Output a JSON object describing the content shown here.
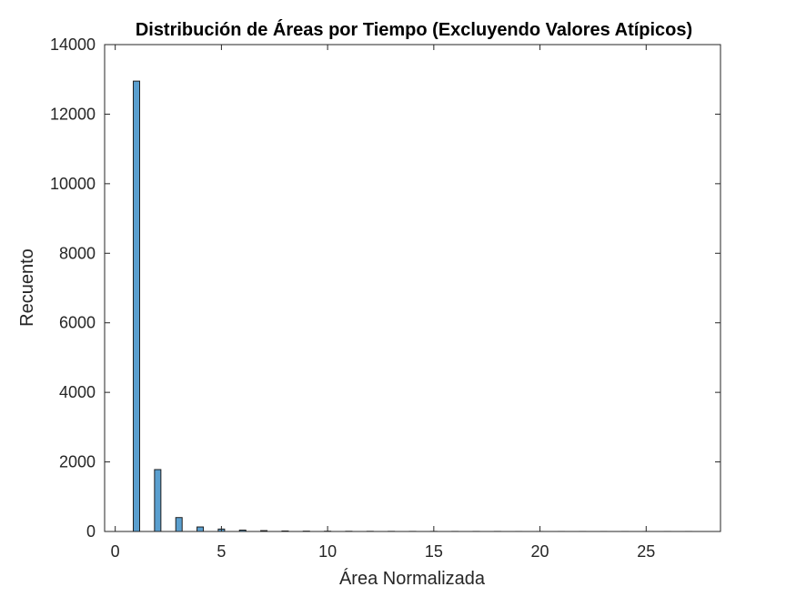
{
  "chart_data": {
    "type": "bar",
    "title": "Distribución de Áreas por Tiempo (Excluyendo Valores Atípicos)",
    "xlabel": "Área Normalizada",
    "ylabel": "Recuento",
    "xlim": [
      -0.5,
      28.5
    ],
    "ylim": [
      0,
      14000
    ],
    "xticks": [
      0,
      5,
      10,
      15,
      20,
      25
    ],
    "yticks": [
      0,
      2000,
      4000,
      6000,
      8000,
      10000,
      12000,
      14000
    ],
    "bar_width": 0.3,
    "bar_color": "#5A9FCF",
    "bar_edge": "#1f1f1f",
    "x": [
      1,
      2,
      3,
      4,
      5,
      6,
      7,
      8,
      9,
      10,
      11,
      12,
      13,
      14,
      15,
      16,
      17,
      18,
      19,
      20,
      21,
      22,
      23,
      24,
      25,
      26,
      27
    ],
    "values": [
      12950,
      1780,
      400,
      130,
      70,
      40,
      25,
      15,
      10,
      8,
      6,
      5,
      4,
      3,
      3,
      2,
      2,
      2,
      1,
      1,
      1,
      1,
      1,
      1,
      1,
      1,
      1
    ],
    "grid": false,
    "box": true
  }
}
